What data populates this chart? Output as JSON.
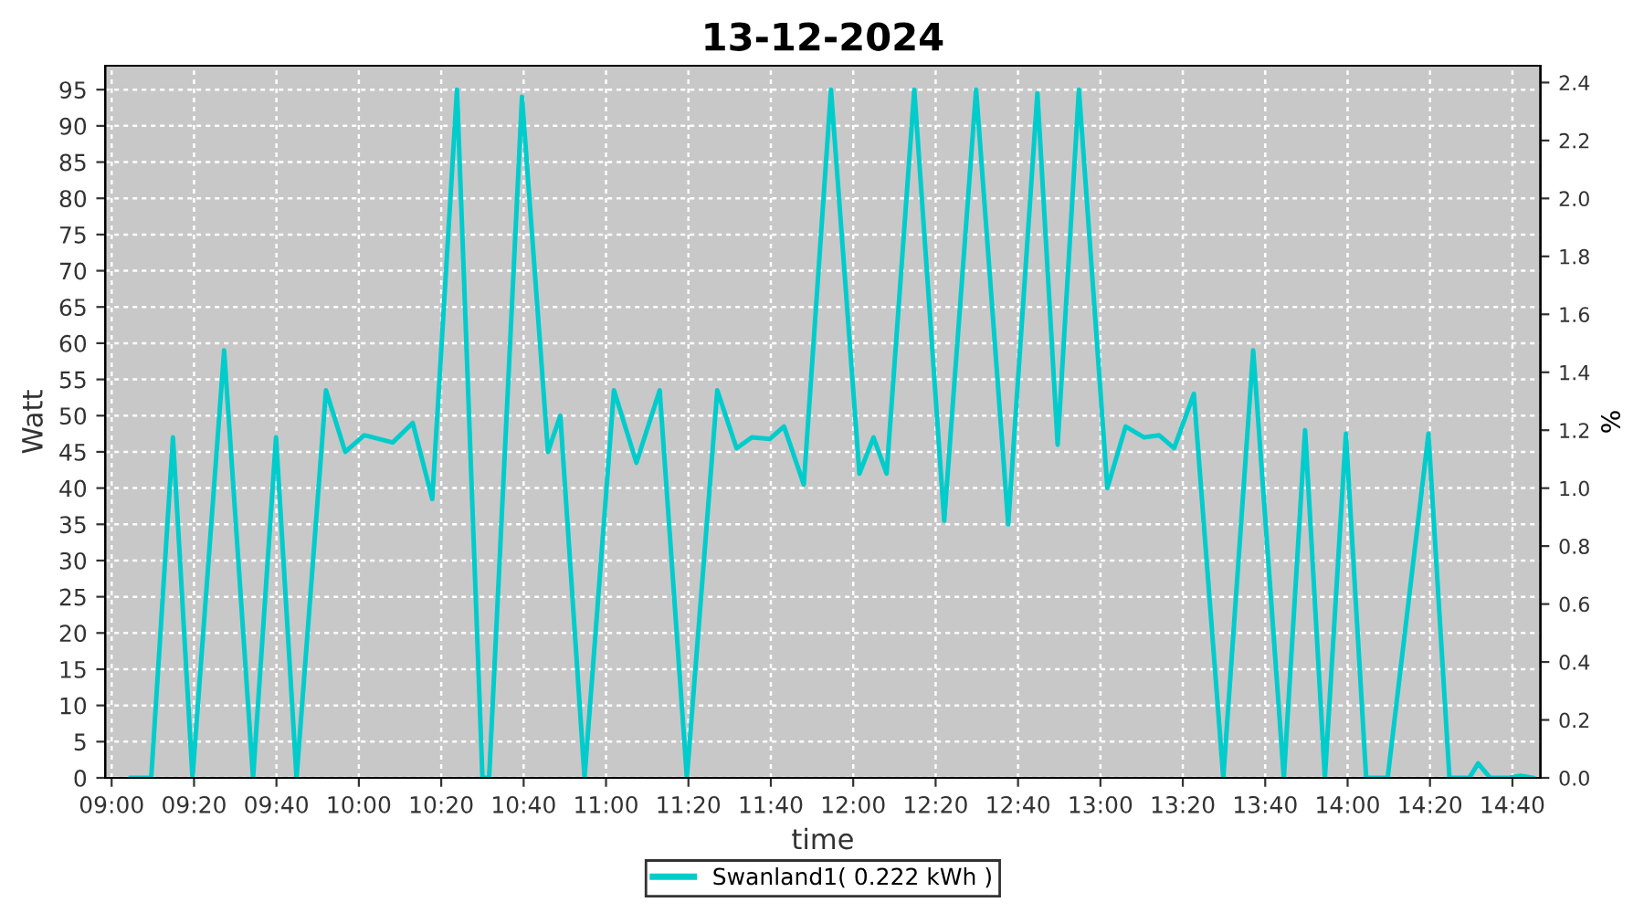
{
  "chart_data": {
    "type": "line",
    "title": "13-12-2024",
    "xlabel": "time",
    "ylabel": "Watt",
    "y2label": "%",
    "xlim": [
      8.974,
      14.78
    ],
    "xticks": [
      {
        "value": 9.0,
        "label": "09:00"
      },
      {
        "value": 9.3333,
        "label": "09:20"
      },
      {
        "value": 9.6667,
        "label": "09:40"
      },
      {
        "value": 10.0,
        "label": "10:00"
      },
      {
        "value": 10.3333,
        "label": "10:20"
      },
      {
        "value": 10.6667,
        "label": "10:40"
      },
      {
        "value": 11.0,
        "label": "11:00"
      },
      {
        "value": 11.3333,
        "label": "11:20"
      },
      {
        "value": 11.6667,
        "label": "11:40"
      },
      {
        "value": 12.0,
        "label": "12:00"
      },
      {
        "value": 12.3333,
        "label": "12:20"
      },
      {
        "value": 12.6667,
        "label": "12:40"
      },
      {
        "value": 13.0,
        "label": "13:00"
      },
      {
        "value": 13.3333,
        "label": "13:20"
      },
      {
        "value": 13.6667,
        "label": "13:40"
      },
      {
        "value": 14.0,
        "label": "14:00"
      },
      {
        "value": 14.3333,
        "label": "14:20"
      },
      {
        "value": 14.6667,
        "label": "14:40"
      }
    ],
    "ylim": [
      0,
      98.3
    ],
    "yticks": [
      0,
      5,
      10,
      15,
      20,
      25,
      30,
      35,
      40,
      45,
      50,
      55,
      60,
      65,
      70,
      75,
      80,
      85,
      90,
      95
    ],
    "y2lim": [
      0,
      2.458
    ],
    "y2ticks": [
      {
        "value": 0,
        "label": "0.0"
      },
      {
        "value": 0.2,
        "label": "0.2"
      },
      {
        "value": 0.4,
        "label": "0.4"
      },
      {
        "value": 0.6,
        "label": "0.6"
      },
      {
        "value": 0.8,
        "label": "0.8"
      },
      {
        "value": 1.0,
        "label": "1.0"
      },
      {
        "value": 1.2,
        "label": "1.2"
      },
      {
        "value": 1.4,
        "label": "1.4"
      },
      {
        "value": 1.6,
        "label": "1.6"
      },
      {
        "value": 1.8,
        "label": "1.8"
      },
      {
        "value": 2.0,
        "label": "2.0"
      },
      {
        "value": 2.2,
        "label": "2.2"
      },
      {
        "value": 2.4,
        "label": "2.4"
      }
    ],
    "grid": true,
    "legend": "bottom",
    "marker": "none",
    "line_style": "solid",
    "series": [
      {
        "name": "Swanland1( 0.222 kWh )",
        "color": "#00cccc",
        "x": [
          9.078,
          9.16,
          9.248,
          9.327,
          9.455,
          9.572,
          9.665,
          9.748,
          9.867,
          9.945,
          10.022,
          10.137,
          10.218,
          10.297,
          10.397,
          10.5,
          10.527,
          10.66,
          10.765,
          10.815,
          10.913,
          11.032,
          11.123,
          11.217,
          11.327,
          11.45,
          11.528,
          11.59,
          11.663,
          11.72,
          11.8,
          11.91,
          12.025,
          12.082,
          12.135,
          12.247,
          12.368,
          12.497,
          12.627,
          12.745,
          12.827,
          12.913,
          13.028,
          13.102,
          13.177,
          13.237,
          13.298,
          13.378,
          13.497,
          13.618,
          13.742,
          13.828,
          13.908,
          13.993,
          14.075,
          14.162,
          14.327,
          14.412,
          14.492,
          14.528,
          14.577,
          14.652,
          14.7,
          14.75
        ],
        "values": [
          0,
          0,
          47,
          0,
          59,
          0,
          47,
          0,
          53.5,
          45,
          47.3,
          46.3,
          49,
          38.5,
          95,
          0,
          0,
          94,
          45,
          50,
          0,
          53.5,
          43.5,
          53.5,
          0,
          53.5,
          45.5,
          47,
          46.8,
          48.5,
          40.5,
          95,
          42,
          47,
          42,
          95,
          35.5,
          95,
          35,
          94.5,
          46,
          95,
          40,
          48.5,
          47,
          47.3,
          45.5,
          53,
          0,
          59,
          0,
          48,
          0,
          47.5,
          0,
          0,
          47.5,
          0,
          0,
          2,
          0,
          0,
          0.3,
          0
        ]
      }
    ]
  }
}
